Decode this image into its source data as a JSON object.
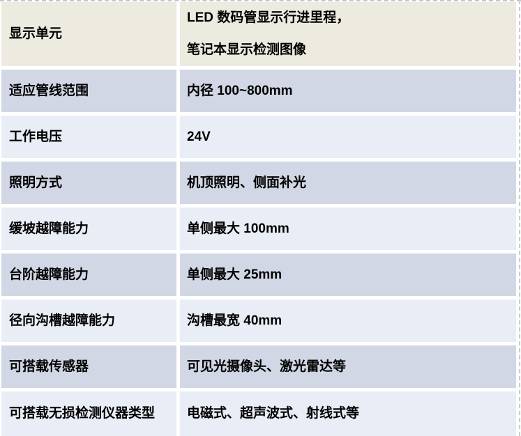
{
  "table": {
    "rows": [
      {
        "label": "显示单元",
        "values": [
          "LED 数码管显示行进里程，",
          "笔记本显示检测图像"
        ]
      },
      {
        "label": "适应管线范围",
        "values": [
          "内径 100~800mm"
        ]
      },
      {
        "label": "工作电压",
        "values": [
          "24V"
        ]
      },
      {
        "label": "照明方式",
        "values": [
          "机顶照明、侧面补光"
        ]
      },
      {
        "label": "缓坡越障能力",
        "values": [
          "单侧最大 100mm"
        ]
      },
      {
        "label": "台阶越障能力",
        "values": [
          "单侧最大 25mm"
        ]
      },
      {
        "label": "径向沟槽越障能力",
        "values": [
          "沟槽最宽 40mm"
        ]
      },
      {
        "label": "可搭载传感器",
        "values": [
          "可见光摄像头、激光雷达等"
        ]
      },
      {
        "label": "可搭载无损检测仪器类型",
        "values": [
          "电磁式、超声波式、射线式等"
        ]
      }
    ]
  },
  "colors": {
    "row_first_beige": "#edeadf",
    "row_alt_dark": "#d2d7e5",
    "row_alt_light": "#e9edf5",
    "gridline_dash": "#c6c6c6",
    "row_gap": "#ffffff",
    "text": "#000000"
  }
}
